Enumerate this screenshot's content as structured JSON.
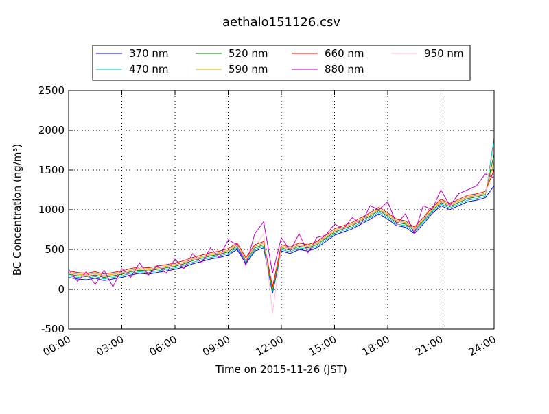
{
  "chart_data": {
    "type": "line",
    "title": "aethalo151126.csv",
    "xlabel": "Time on 2015-11-26 (JST)",
    "ylabel": "BC Concentration (ng/m³)",
    "x": [
      0,
      0.5,
      1,
      1.5,
      2,
      2.5,
      3,
      3.5,
      4,
      4.5,
      5,
      5.5,
      6,
      6.5,
      7,
      7.5,
      8,
      8.5,
      9,
      9.5,
      10,
      10.5,
      11,
      11.5,
      12,
      12.5,
      13,
      13.5,
      14,
      14.5,
      15,
      15.5,
      16,
      16.5,
      17,
      17.5,
      18,
      18.5,
      19,
      19.5,
      20,
      20.5,
      21,
      21.5,
      22,
      22.5,
      23,
      23.5,
      24
    ],
    "series": [
      {
        "name": "370 nm",
        "color": "#0000ff",
        "values": [
          150,
          130,
          120,
          140,
          110,
          130,
          150,
          180,
          200,
          190,
          210,
          230,
          250,
          280,
          320,
          350,
          380,
          400,
          430,
          500,
          320,
          480,
          520,
          -50,
          480,
          450,
          500,
          480,
          520,
          600,
          680,
          720,
          760,
          820,
          880,
          950,
          880,
          800,
          780,
          700,
          820,
          950,
          1050,
          1000,
          1050,
          1100,
          1120,
          1150,
          1300
        ]
      },
      {
        "name": "470 nm",
        "color": "#00bfbf",
        "values": [
          170,
          150,
          140,
          160,
          130,
          150,
          170,
          200,
          220,
          210,
          230,
          250,
          270,
          300,
          340,
          370,
          400,
          420,
          450,
          520,
          340,
          500,
          540,
          -30,
          500,
          470,
          520,
          500,
          540,
          620,
          700,
          740,
          780,
          840,
          900,
          970,
          900,
          820,
          800,
          720,
          840,
          970,
          1070,
          1020,
          1070,
          1120,
          1140,
          1170,
          1900
        ]
      },
      {
        "name": "520 nm",
        "color": "#008000",
        "values": [
          190,
          170,
          160,
          180,
          150,
          170,
          190,
          220,
          240,
          230,
          250,
          270,
          290,
          320,
          360,
          390,
          420,
          440,
          470,
          540,
          360,
          520,
          560,
          -10,
          520,
          490,
          540,
          520,
          560,
          640,
          720,
          760,
          800,
          860,
          920,
          990,
          920,
          840,
          820,
          740,
          860,
          990,
          1090,
          1040,
          1090,
          1140,
          1160,
          1190,
          1700
        ]
      },
      {
        "name": "590 nm",
        "color": "#d4b000",
        "values": [
          210,
          190,
          180,
          200,
          170,
          190,
          210,
          240,
          260,
          250,
          270,
          290,
          310,
          340,
          380,
          410,
          440,
          460,
          490,
          560,
          380,
          540,
          580,
          10,
          540,
          510,
          560,
          540,
          580,
          660,
          740,
          780,
          820,
          880,
          940,
          1010,
          940,
          860,
          840,
          760,
          880,
          1010,
          1110,
          1060,
          1110,
          1160,
          1180,
          1210,
          1600
        ]
      },
      {
        "name": "660 nm",
        "color": "#ff0000",
        "values": [
          230,
          210,
          200,
          220,
          190,
          210,
          230,
          260,
          280,
          270,
          290,
          310,
          330,
          360,
          400,
          430,
          460,
          480,
          510,
          580,
          400,
          560,
          600,
          30,
          560,
          530,
          580,
          560,
          600,
          680,
          760,
          800,
          840,
          900,
          960,
          1030,
          960,
          880,
          860,
          780,
          900,
          1030,
          1130,
          1080,
          1130,
          1180,
          1200,
          1230,
          1500
        ]
      },
      {
        "name": "880 nm",
        "color": "#bf00bf",
        "values": [
          250,
          100,
          220,
          60,
          240,
          30,
          260,
          150,
          330,
          180,
          300,
          200,
          380,
          260,
          450,
          330,
          520,
          400,
          620,
          560,
          300,
          700,
          850,
          200,
          650,
          480,
          700,
          460,
          650,
          680,
          820,
          760,
          900,
          820,
          1050,
          1000,
          1100,
          820,
          950,
          700,
          1050,
          1000,
          1250,
          1050,
          1200,
          1250,
          1300,
          1450,
          1400
        ]
      },
      {
        "name": "950 nm",
        "color": "#ffc0cb",
        "values": [
          200,
          180,
          170,
          190,
          160,
          180,
          200,
          230,
          250,
          240,
          260,
          280,
          300,
          330,
          370,
          400,
          430,
          450,
          480,
          550,
          370,
          530,
          700,
          -300,
          530,
          500,
          550,
          530,
          570,
          650,
          730,
          770,
          810,
          870,
          930,
          1000,
          930,
          850,
          830,
          750,
          870,
          1000,
          1100,
          1050,
          1100,
          1150,
          1170,
          1200,
          1800
        ]
      }
    ],
    "xlim": [
      0,
      24
    ],
    "xticks": [
      {
        "value": 0,
        "label": "00:00"
      },
      {
        "value": 3,
        "label": "03:00"
      },
      {
        "value": 6,
        "label": "06:00"
      },
      {
        "value": 9,
        "label": "09:00"
      },
      {
        "value": 12,
        "label": "12:00"
      },
      {
        "value": 15,
        "label": "15:00"
      },
      {
        "value": 18,
        "label": "18:00"
      },
      {
        "value": 21,
        "label": "21:00"
      },
      {
        "value": 24,
        "label": "24:00"
      }
    ],
    "ylim": [
      -500,
      2500
    ],
    "yticks": [
      -500,
      0,
      500,
      1000,
      1500,
      2000,
      2500
    ],
    "grid": true,
    "legend": "top"
  }
}
